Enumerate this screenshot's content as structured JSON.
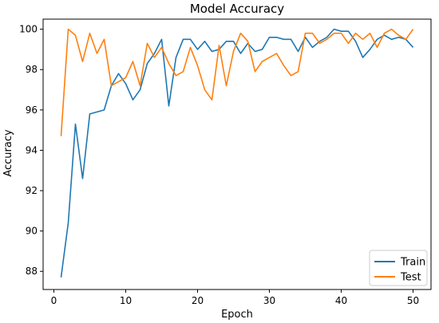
{
  "chart_data": {
    "type": "line",
    "title": "Model Accuracy",
    "xlabel": "Epoch",
    "ylabel": "Accuracy",
    "xlim": [
      -1.5,
      52.5
    ],
    "ylim": [
      87.1,
      100.5
    ],
    "xticks": [
      0,
      10,
      20,
      30,
      40,
      50
    ],
    "yticks": [
      88,
      90,
      92,
      94,
      96,
      98,
      100
    ],
    "grid": false,
    "legend": "bottom-right",
    "x": [
      1,
      2,
      3,
      4,
      5,
      6,
      7,
      8,
      9,
      10,
      11,
      12,
      13,
      14,
      15,
      16,
      17,
      18,
      19,
      20,
      21,
      22,
      23,
      24,
      25,
      26,
      27,
      28,
      29,
      30,
      31,
      32,
      33,
      34,
      35,
      36,
      37,
      38,
      39,
      40,
      41,
      42,
      43,
      44,
      45,
      46,
      47,
      48,
      49,
      50
    ],
    "series": [
      {
        "name": "Train",
        "color": "#1f77b4",
        "values": [
          87.7,
          90.4,
          95.3,
          92.6,
          95.8,
          95.9,
          96.0,
          97.2,
          97.8,
          97.3,
          96.5,
          97.0,
          98.3,
          98.8,
          99.5,
          96.2,
          98.6,
          99.5,
          99.5,
          99.0,
          99.4,
          98.9,
          99.0,
          99.4,
          99.4,
          98.8,
          99.3,
          98.9,
          99.0,
          99.6,
          99.6,
          99.5,
          99.5,
          98.9,
          99.6,
          99.1,
          99.4,
          99.6,
          100.0,
          99.9,
          99.9,
          99.4,
          98.6,
          99.0,
          99.5,
          99.7,
          99.5,
          99.6,
          99.5,
          99.1
        ]
      },
      {
        "name": "Test",
        "color": "#ff7f0e",
        "values": [
          94.7,
          100.0,
          99.7,
          98.4,
          99.8,
          98.8,
          99.5,
          97.2,
          97.4,
          97.6,
          98.4,
          97.2,
          99.3,
          98.6,
          99.1,
          98.3,
          97.7,
          97.9,
          99.1,
          98.2,
          97.0,
          96.5,
          99.2,
          97.2,
          98.9,
          99.8,
          99.4,
          97.9,
          98.4,
          98.6,
          98.8,
          98.2,
          97.7,
          97.9,
          99.8,
          99.8,
          99.3,
          99.5,
          99.8,
          99.8,
          99.3,
          99.8,
          99.5,
          99.8,
          99.1,
          99.8,
          100.0,
          99.7,
          99.5,
          100.0
        ]
      }
    ]
  }
}
